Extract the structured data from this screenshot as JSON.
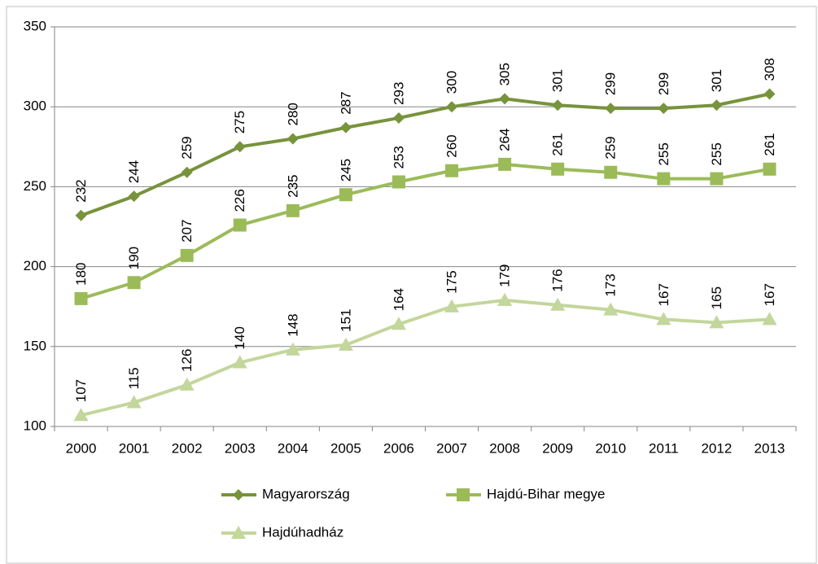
{
  "chart_data": {
    "type": "line",
    "categories": [
      "2000",
      "2001",
      "2002",
      "2003",
      "2004",
      "2005",
      "2006",
      "2007",
      "2008",
      "2009",
      "2010",
      "2011",
      "2012",
      "2013"
    ],
    "series": [
      {
        "name": "Magyarország",
        "color": "#77933c",
        "marker": "diamond",
        "values": [
          232,
          244,
          259,
          275,
          280,
          287,
          293,
          300,
          305,
          301,
          299,
          299,
          301,
          308
        ]
      },
      {
        "name": "Hajdú-Bihar megye",
        "color": "#9bbb59",
        "marker": "square",
        "values": [
          180,
          190,
          207,
          226,
          235,
          245,
          253,
          260,
          264,
          261,
          259,
          255,
          255,
          261
        ]
      },
      {
        "name": "Hajdúhadház",
        "color": "#c3d69b",
        "marker": "triangle",
        "values": [
          107,
          115,
          126,
          140,
          148,
          151,
          164,
          175,
          179,
          176,
          173,
          167,
          165,
          167
        ]
      }
    ],
    "ylim": [
      100,
      350
    ],
    "yticks": [
      100,
      150,
      200,
      250,
      300,
      350
    ],
    "grid": true
  }
}
